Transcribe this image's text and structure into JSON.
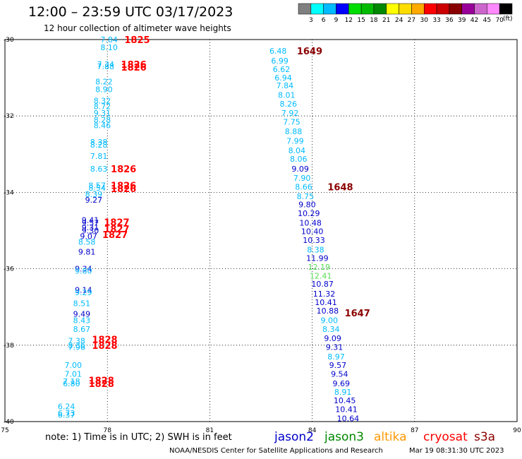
{
  "header": {
    "title": "12:00 – 23:59 UTC 03/17/2023",
    "subtitle": "12 hour collection of altimeter wave heights"
  },
  "colorbar": {
    "colors": [
      "#808080",
      "#00ffff",
      "#00bbff",
      "#0000ff",
      "#00dd00",
      "#00bb00",
      "#008800",
      "#ffff00",
      "#ffdd00",
      "#ffaa00",
      "#ff0000",
      "#cc0000",
      "#880000",
      "#990099",
      "#cc66cc",
      "#ff88ff",
      "#000000"
    ],
    "labels": [
      "3",
      "6",
      "9",
      "12",
      "15",
      "18",
      "21",
      "24",
      "27",
      "30",
      "33",
      "36",
      "39",
      "42",
      "45",
      "70"
    ],
    "unit": "(ft)"
  },
  "footer": {
    "note": "note:  1) Time is in UTC;  2) SWH is in feet",
    "credit": "NOAA/NESDIS Center for Satellite Applications and Research",
    "timestamp": "Mar 19 08:31:30 UTC 2023"
  },
  "satellites": [
    {
      "name": "jason2",
      "color": "#0000cc"
    },
    {
      "name": "jason3",
      "color": "#008800"
    },
    {
      "name": "altika",
      "color": "#ff9900"
    },
    {
      "name": "cryosat",
      "color": "#ff0000"
    },
    {
      "name": "s3a",
      "color": "#8b0000"
    }
  ],
  "chart_data": {
    "type": "scatter",
    "title": "12:00 – 23:59 UTC 03/17/2023",
    "subtitle": "12 hour collection of altimeter wave heights",
    "x_ticks": [
      "75",
      "78",
      "81",
      "84",
      "87",
      "90"
    ],
    "y_ticks": [
      "-30",
      "-32",
      "-34",
      "-36",
      "-38",
      "-40"
    ],
    "xlim": [
      75,
      90
    ],
    "ylim": [
      -40,
      -30
    ],
    "grid": true,
    "series": [
      {
        "name": "track-west",
        "points": [
          {
            "x": 78.05,
            "y": -30.0,
            "label": "7.84",
            "color": "#00bbff"
          },
          {
            "x": 78.05,
            "y": -30.2,
            "label": "8.10",
            "color": "#00bbff"
          },
          {
            "x": 77.95,
            "y": -30.65,
            "label": "7.34",
            "color": "#00bbff"
          },
          {
            "x": 77.95,
            "y": -30.7,
            "label": "7.88",
            "color": "#00bbff"
          },
          {
            "x": 77.9,
            "y": -31.1,
            "label": "8.22",
            "color": "#00bbff"
          },
          {
            "x": 77.9,
            "y": -31.3,
            "label": "8.90",
            "color": "#00bbff"
          },
          {
            "x": 77.85,
            "y": -31.6,
            "label": "8.32",
            "color": "#00bbff"
          },
          {
            "x": 77.85,
            "y": -31.75,
            "label": "8.72",
            "color": "#00bbff"
          },
          {
            "x": 77.85,
            "y": -31.92,
            "label": "9.31",
            "color": "#00bbff"
          },
          {
            "x": 77.85,
            "y": -32.1,
            "label": "8.28",
            "color": "#00bbff"
          },
          {
            "x": 77.85,
            "y": -32.25,
            "label": "8.46",
            "color": "#00bbff"
          },
          {
            "x": 77.75,
            "y": -32.68,
            "label": "8.38",
            "color": "#00bbff"
          },
          {
            "x": 77.75,
            "y": -32.75,
            "label": "8.28",
            "color": "#00bbff"
          },
          {
            "x": 77.75,
            "y": -33.05,
            "label": "7.81",
            "color": "#00bbff"
          },
          {
            "x": 77.75,
            "y": -33.38,
            "label": "8.63",
            "color": "#00bbff"
          },
          {
            "x": 77.7,
            "y": -33.82,
            "label": "8.57",
            "color": "#00bbff"
          },
          {
            "x": 77.7,
            "y": -33.88,
            "label": "8.54",
            "color": "#00bbff"
          },
          {
            "x": 77.6,
            "y": -34.05,
            "label": "8.39",
            "color": "#00bbff"
          },
          {
            "x": 77.6,
            "y": -34.2,
            "label": "9.27",
            "color": "#0000cc"
          },
          {
            "x": 77.5,
            "y": -34.72,
            "label": "9.41",
            "color": "#0000cc"
          },
          {
            "x": 77.5,
            "y": -34.8,
            "label": "9.57",
            "color": "#0000cc"
          },
          {
            "x": 77.5,
            "y": -34.92,
            "label": "9.31",
            "color": "#0000cc"
          },
          {
            "x": 77.5,
            "y": -35.0,
            "label": "9.30",
            "color": "#0000cc"
          },
          {
            "x": 77.45,
            "y": -35.15,
            "label": "9.07",
            "color": "#0000cc"
          },
          {
            "x": 77.4,
            "y": -35.3,
            "label": "8.58",
            "color": "#00bbff"
          },
          {
            "x": 77.4,
            "y": -35.55,
            "label": "9.81",
            "color": "#0000cc"
          },
          {
            "x": 77.3,
            "y": -36.0,
            "label": "9.34",
            "color": "#0000cc"
          },
          {
            "x": 77.3,
            "y": -36.05,
            "label": "9.80",
            "color": "#00bbff"
          },
          {
            "x": 77.3,
            "y": -36.55,
            "label": "9.14",
            "color": "#0000cc"
          },
          {
            "x": 77.3,
            "y": -36.62,
            "label": "9.29",
            "color": "#00bbff"
          },
          {
            "x": 77.25,
            "y": -36.9,
            "label": "8.51",
            "color": "#00bbff"
          },
          {
            "x": 77.25,
            "y": -37.18,
            "label": "9.49",
            "color": "#0000cc"
          },
          {
            "x": 77.25,
            "y": -37.35,
            "label": "8.43",
            "color": "#00bbff"
          },
          {
            "x": 77.25,
            "y": -37.58,
            "label": "8.67",
            "color": "#00bbff"
          },
          {
            "x": 77.1,
            "y": -37.88,
            "label": "7.38",
            "color": "#00bbff"
          },
          {
            "x": 77.1,
            "y": -38.0,
            "label": "8.36",
            "color": "#00bbff"
          },
          {
            "x": 77.1,
            "y": -38.05,
            "label": "7.96",
            "color": "#00bbff"
          },
          {
            "x": 77.0,
            "y": -38.52,
            "label": "7.00",
            "color": "#00bbff"
          },
          {
            "x": 77.0,
            "y": -38.75,
            "label": "7.01",
            "color": "#00bbff"
          },
          {
            "x": 76.95,
            "y": -38.95,
            "label": "7.18",
            "color": "#00bbff"
          },
          {
            "x": 76.95,
            "y": -39.0,
            "label": "6.80",
            "color": "#00bbff"
          },
          {
            "x": 76.8,
            "y": -39.6,
            "label": "6.24",
            "color": "#00bbff"
          },
          {
            "x": 76.8,
            "y": -39.78,
            "label": "6.73",
            "color": "#00bbff"
          },
          {
            "x": 76.8,
            "y": -39.82,
            "label": "6.37",
            "color": "#00bbff"
          }
        ]
      },
      {
        "name": "track-east",
        "points": [
          {
            "x": 83.0,
            "y": -30.3,
            "label": "6.48",
            "color": "#00bbff"
          },
          {
            "x": 83.05,
            "y": -30.55,
            "label": "6.99",
            "color": "#00bbff"
          },
          {
            "x": 83.1,
            "y": -30.78,
            "label": "6.62",
            "color": "#00bbff"
          },
          {
            "x": 83.15,
            "y": -31.0,
            "label": "6.94",
            "color": "#00bbff"
          },
          {
            "x": 83.2,
            "y": -31.2,
            "label": "7.84",
            "color": "#00bbff"
          },
          {
            "x": 83.25,
            "y": -31.45,
            "label": "8.01",
            "color": "#00bbff"
          },
          {
            "x": 83.3,
            "y": -31.68,
            "label": "8.26",
            "color": "#00bbff"
          },
          {
            "x": 83.35,
            "y": -31.92,
            "label": "7.92",
            "color": "#00bbff"
          },
          {
            "x": 83.4,
            "y": -32.15,
            "label": "7.75",
            "color": "#00bbff"
          },
          {
            "x": 83.45,
            "y": -32.4,
            "label": "8.88",
            "color": "#00bbff"
          },
          {
            "x": 83.5,
            "y": -32.65,
            "label": "7.99",
            "color": "#00bbff"
          },
          {
            "x": 83.55,
            "y": -32.9,
            "label": "8.04",
            "color": "#00bbff"
          },
          {
            "x": 83.6,
            "y": -33.12,
            "label": "8.06",
            "color": "#00bbff"
          },
          {
            "x": 83.65,
            "y": -33.38,
            "label": "9.09",
            "color": "#0000cc"
          },
          {
            "x": 83.7,
            "y": -33.62,
            "label": "7.90",
            "color": "#00bbff"
          },
          {
            "x": 83.75,
            "y": -33.85,
            "label": "8.66",
            "color": "#00bbff"
          },
          {
            "x": 83.8,
            "y": -34.1,
            "label": "8.75",
            "color": "#00bbff"
          },
          {
            "x": 83.85,
            "y": -34.32,
            "label": "9.80",
            "color": "#0000cc"
          },
          {
            "x": 83.9,
            "y": -34.55,
            "label": "10.29",
            "color": "#0000cc"
          },
          {
            "x": 83.95,
            "y": -34.8,
            "label": "10.48",
            "color": "#0000cc"
          },
          {
            "x": 84.0,
            "y": -35.02,
            "label": "10.40",
            "color": "#0000cc"
          },
          {
            "x": 84.05,
            "y": -35.25,
            "label": "10.33",
            "color": "#0000cc"
          },
          {
            "x": 84.1,
            "y": -35.5,
            "label": "8.38",
            "color": "#00bbff"
          },
          {
            "x": 84.15,
            "y": -35.72,
            "label": "11.99",
            "color": "#0000cc"
          },
          {
            "x": 84.2,
            "y": -35.95,
            "label": "12.19",
            "color": "#55dd55"
          },
          {
            "x": 84.25,
            "y": -36.18,
            "label": "12.41",
            "color": "#55dd55"
          },
          {
            "x": 84.3,
            "y": -36.4,
            "label": "10.87",
            "color": "#0000cc"
          },
          {
            "x": 84.35,
            "y": -36.65,
            "label": "11.32",
            "color": "#0000cc"
          },
          {
            "x": 84.4,
            "y": -36.88,
            "label": "10.41",
            "color": "#0000cc"
          },
          {
            "x": 84.45,
            "y": -37.1,
            "label": "10.88",
            "color": "#0000cc"
          },
          {
            "x": 84.5,
            "y": -37.35,
            "label": "9.00",
            "color": "#00bbff"
          },
          {
            "x": 84.55,
            "y": -37.58,
            "label": "8.34",
            "color": "#00bbff"
          },
          {
            "x": 84.6,
            "y": -37.82,
            "label": "9.09",
            "color": "#0000cc"
          },
          {
            "x": 84.65,
            "y": -38.05,
            "label": "9.31",
            "color": "#0000cc"
          },
          {
            "x": 84.7,
            "y": -38.3,
            "label": "8.97",
            "color": "#00bbff"
          },
          {
            "x": 84.75,
            "y": -38.52,
            "label": "9.57",
            "color": "#0000cc"
          },
          {
            "x": 84.8,
            "y": -38.75,
            "label": "9.54",
            "color": "#0000cc"
          },
          {
            "x": 84.85,
            "y": -39.0,
            "label": "9.69",
            "color": "#0000cc"
          },
          {
            "x": 84.9,
            "y": -39.22,
            "label": "8.91",
            "color": "#00bbff"
          },
          {
            "x": 84.95,
            "y": -39.45,
            "label": "10.45",
            "color": "#0000cc"
          },
          {
            "x": 85.0,
            "y": -39.68,
            "label": "10.41",
            "color": "#0000cc"
          },
          {
            "x": 85.05,
            "y": -39.92,
            "label": "10.64",
            "color": "#0000cc"
          }
        ]
      }
    ],
    "annotations": [
      {
        "x": 78.5,
        "y": -30.0,
        "text": "1825",
        "color": "#ff0000"
      },
      {
        "x": 78.4,
        "y": -30.65,
        "text": "1826",
        "color": "#ff0000"
      },
      {
        "x": 78.4,
        "y": -30.72,
        "text": "1826",
        "color": "#ff0000"
      },
      {
        "x": 78.1,
        "y": -33.38,
        "text": "1826",
        "color": "#ff0000"
      },
      {
        "x": 78.1,
        "y": -33.82,
        "text": "1826",
        "color": "#ff0000"
      },
      {
        "x": 78.1,
        "y": -33.9,
        "text": "1826",
        "color": "#ff0000"
      },
      {
        "x": 77.9,
        "y": -34.78,
        "text": "1827",
        "color": "#ff0000"
      },
      {
        "x": 77.9,
        "y": -34.95,
        "text": "1827",
        "color": "#ff0000"
      },
      {
        "x": 77.85,
        "y": -35.1,
        "text": "1827",
        "color": "#ff0000"
      },
      {
        "x": 77.55,
        "y": -37.85,
        "text": "1828",
        "color": "#ff0000"
      },
      {
        "x": 77.55,
        "y": -38.0,
        "text": "1828",
        "color": "#ff0000"
      },
      {
        "x": 77.45,
        "y": -38.92,
        "text": "1828",
        "color": "#ff0000"
      },
      {
        "x": 77.45,
        "y": -39.0,
        "text": "1828",
        "color": "#ff0000"
      },
      {
        "x": 83.55,
        "y": -30.3,
        "text": "1649",
        "color": "#8b0000"
      },
      {
        "x": 84.45,
        "y": -33.85,
        "text": "1648",
        "color": "#8b0000"
      },
      {
        "x": 84.95,
        "y": -37.15,
        "text": "1647",
        "color": "#8b0000"
      }
    ]
  }
}
